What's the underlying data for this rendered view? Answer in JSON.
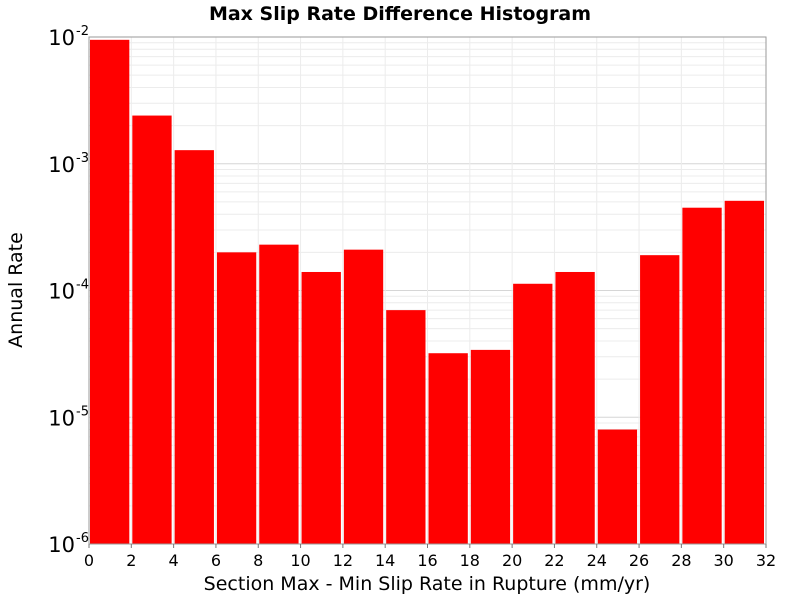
{
  "chart_data": {
    "type": "bar",
    "title": "Max Slip Rate Difference Histogram",
    "xlabel": "Section Max - Min Slip Rate in Rupture (mm/yr)",
    "ylabel": "Annual Rate",
    "yscale": "log",
    "xlim": [
      0,
      32
    ],
    "ylim": [
      1e-06,
      0.01
    ],
    "bin_width": 2,
    "x_ticks": [
      "0",
      "2",
      "4",
      "6",
      "8",
      "10",
      "12",
      "14",
      "16",
      "18",
      "20",
      "22",
      "24",
      "26",
      "28",
      "30",
      "32"
    ],
    "y_ticks": [
      {
        "base": "10",
        "exp": "-6"
      },
      {
        "base": "10",
        "exp": "-5"
      },
      {
        "base": "10",
        "exp": "-4"
      },
      {
        "base": "10",
        "exp": "-3"
      },
      {
        "base": "10",
        "exp": "-2"
      }
    ],
    "bin_starts": [
      0,
      2,
      4,
      6,
      8,
      10,
      12,
      14,
      16,
      18,
      20,
      22,
      24,
      26,
      28,
      30
    ],
    "values": [
      0.0095,
      0.0024,
      0.00128,
      0.0002,
      0.00023,
      0.00014,
      0.00021,
      7e-05,
      3.2e-05,
      3.4e-05,
      0.000113,
      0.00014,
      8e-06,
      0.00019,
      0.00045,
      0.00051
    ],
    "bar_color": "#ff0000",
    "grid": true,
    "legend": "none"
  }
}
